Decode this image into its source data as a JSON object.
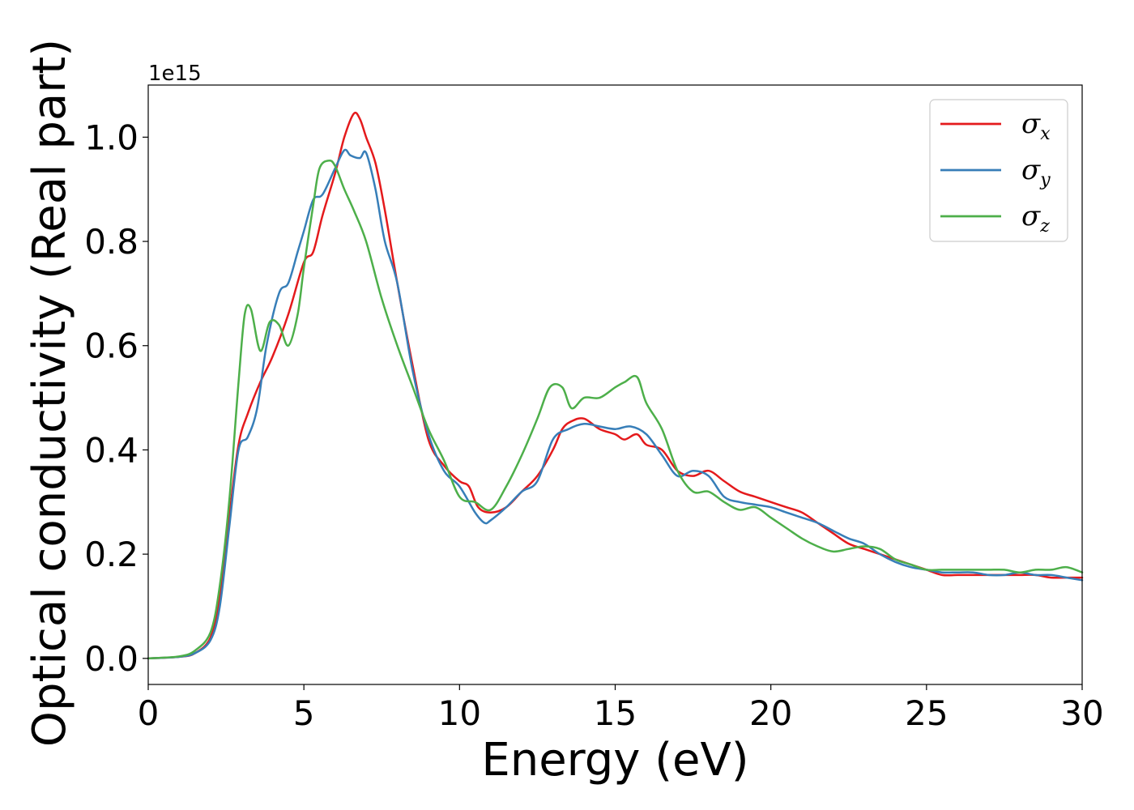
{
  "chart_data": {
    "type": "line",
    "title": "",
    "xlabel": "Energy (eV)",
    "ylabel": "Optical conductivity (Real part)",
    "y_offset_text": "1e15",
    "xlim": [
      0,
      30
    ],
    "ylim": [
      -0.05,
      1.1
    ],
    "xticks": [
      0,
      5,
      10,
      15,
      20,
      25,
      30
    ],
    "yticks": [
      0.0,
      0.2,
      0.4,
      0.6,
      0.8,
      1.0
    ],
    "grid": false,
    "legend_position": "top-right",
    "series": [
      {
        "name": "σx",
        "name_base": "σ",
        "name_sub": "x",
        "color": "#e41a1c",
        "x": [
          0,
          1.0,
          1.5,
          2.0,
          2.3,
          2.6,
          2.9,
          3.2,
          3.6,
          4.0,
          4.5,
          5.0,
          5.3,
          5.6,
          6.0,
          6.3,
          6.6,
          6.8,
          7.0,
          7.3,
          7.6,
          8.0,
          8.5,
          9.0,
          9.5,
          10.0,
          10.3,
          10.6,
          11.0,
          11.5,
          12.0,
          12.5,
          13.0,
          13.3,
          13.6,
          14.0,
          14.5,
          15.0,
          15.3,
          15.7,
          16.0,
          16.5,
          17.0,
          17.5,
          18.0,
          18.5,
          19.0,
          19.5,
          20.0,
          20.5,
          21.0,
          21.5,
          22.0,
          22.5,
          23.0,
          23.5,
          24.0,
          24.5,
          25.0,
          25.5,
          26.0,
          26.5,
          27.0,
          27.5,
          28.0,
          28.5,
          29.0,
          29.5,
          30.0
        ],
        "values": [
          0.0,
          0.003,
          0.01,
          0.04,
          0.12,
          0.27,
          0.41,
          0.47,
          0.53,
          0.58,
          0.66,
          0.76,
          0.78,
          0.85,
          0.93,
          1.0,
          1.045,
          1.035,
          1.0,
          0.95,
          0.86,
          0.72,
          0.56,
          0.42,
          0.37,
          0.34,
          0.33,
          0.29,
          0.28,
          0.29,
          0.32,
          0.35,
          0.4,
          0.44,
          0.455,
          0.46,
          0.44,
          0.43,
          0.42,
          0.43,
          0.41,
          0.4,
          0.36,
          0.35,
          0.36,
          0.34,
          0.32,
          0.31,
          0.3,
          0.29,
          0.28,
          0.26,
          0.24,
          0.22,
          0.21,
          0.2,
          0.19,
          0.18,
          0.17,
          0.16,
          0.16,
          0.16,
          0.16,
          0.16,
          0.16,
          0.16,
          0.155,
          0.155,
          0.155
        ]
      },
      {
        "name": "σy",
        "name_base": "σ",
        "name_sub": "y",
        "color": "#377eb8",
        "x": [
          0,
          1.0,
          1.5,
          2.0,
          2.3,
          2.6,
          2.9,
          3.2,
          3.5,
          3.8,
          4.2,
          4.5,
          4.8,
          5.0,
          5.3,
          5.6,
          6.0,
          6.3,
          6.5,
          6.8,
          7.0,
          7.3,
          7.6,
          8.0,
          8.5,
          9.0,
          9.5,
          10.0,
          10.5,
          10.8,
          11.0,
          11.5,
          12.0,
          12.5,
          13.0,
          13.5,
          14.0,
          14.5,
          15.0,
          15.5,
          16.0,
          16.5,
          17.0,
          17.5,
          18.0,
          18.5,
          19.0,
          19.5,
          20.0,
          20.5,
          21.0,
          21.5,
          22.0,
          22.5,
          23.0,
          23.5,
          24.0,
          24.5,
          25.0,
          25.5,
          26.0,
          26.5,
          27.0,
          27.5,
          28.0,
          28.5,
          29.0,
          29.5,
          30.0
        ],
        "values": [
          0.0,
          0.003,
          0.01,
          0.035,
          0.1,
          0.25,
          0.4,
          0.425,
          0.48,
          0.6,
          0.7,
          0.72,
          0.78,
          0.82,
          0.88,
          0.89,
          0.94,
          0.975,
          0.965,
          0.96,
          0.97,
          0.9,
          0.8,
          0.72,
          0.55,
          0.43,
          0.36,
          0.33,
          0.28,
          0.26,
          0.265,
          0.29,
          0.32,
          0.34,
          0.42,
          0.44,
          0.45,
          0.445,
          0.44,
          0.445,
          0.43,
          0.39,
          0.35,
          0.36,
          0.35,
          0.31,
          0.3,
          0.295,
          0.29,
          0.28,
          0.27,
          0.26,
          0.245,
          0.23,
          0.22,
          0.2,
          0.185,
          0.175,
          0.17,
          0.165,
          0.165,
          0.165,
          0.16,
          0.16,
          0.165,
          0.16,
          0.16,
          0.155,
          0.15
        ]
      },
      {
        "name": "σz",
        "name_base": "σ",
        "name_sub": "z",
        "color": "#4daf4a",
        "x": [
          0,
          1.0,
          1.5,
          2.0,
          2.3,
          2.6,
          2.9,
          3.1,
          3.3,
          3.6,
          3.9,
          4.2,
          4.5,
          4.8,
          5.0,
          5.3,
          5.5,
          5.8,
          6.0,
          6.3,
          6.6,
          7.0,
          7.5,
          8.0,
          8.5,
          9.0,
          9.5,
          10.0,
          10.5,
          11.0,
          11.5,
          12.0,
          12.5,
          12.9,
          13.3,
          13.6,
          14.0,
          14.5,
          15.0,
          15.3,
          15.7,
          16.0,
          16.5,
          17.0,
          17.5,
          18.0,
          18.5,
          19.0,
          19.5,
          20.0,
          20.5,
          21.0,
          21.5,
          22.0,
          22.5,
          23.0,
          23.5,
          24.0,
          24.5,
          25.0,
          25.5,
          26.0,
          26.5,
          27.0,
          27.5,
          28.0,
          28.5,
          29.0,
          29.5,
          30.0
        ],
        "values": [
          0.0,
          0.004,
          0.015,
          0.05,
          0.14,
          0.3,
          0.53,
          0.66,
          0.67,
          0.59,
          0.645,
          0.64,
          0.6,
          0.66,
          0.75,
          0.87,
          0.94,
          0.955,
          0.945,
          0.9,
          0.86,
          0.8,
          0.69,
          0.6,
          0.52,
          0.44,
          0.38,
          0.31,
          0.3,
          0.285,
          0.33,
          0.39,
          0.46,
          0.52,
          0.52,
          0.48,
          0.5,
          0.5,
          0.52,
          0.53,
          0.54,
          0.49,
          0.44,
          0.36,
          0.32,
          0.32,
          0.3,
          0.285,
          0.29,
          0.27,
          0.25,
          0.23,
          0.215,
          0.205,
          0.21,
          0.215,
          0.21,
          0.19,
          0.18,
          0.17,
          0.17,
          0.17,
          0.17,
          0.17,
          0.17,
          0.165,
          0.17,
          0.17,
          0.175,
          0.165
        ]
      }
    ]
  }
}
